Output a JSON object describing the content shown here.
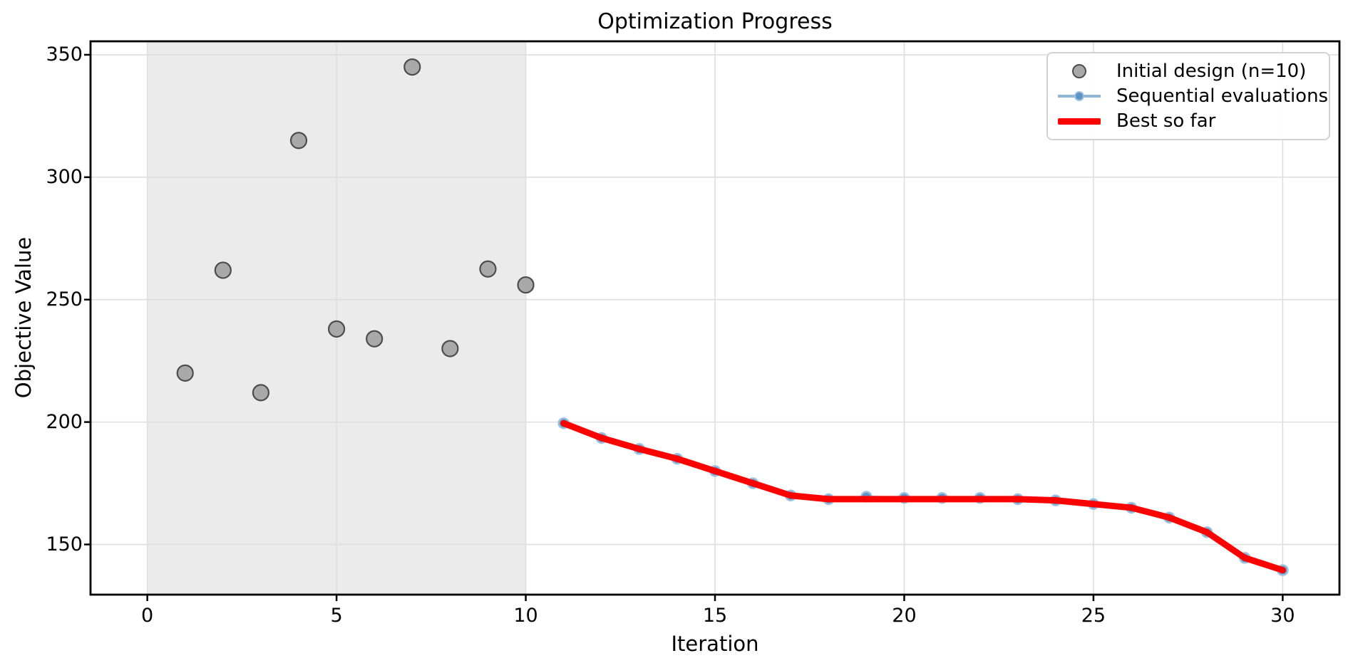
{
  "chart_data": {
    "type": "scatter+line",
    "title": "Optimization Progress",
    "xlabel": "Iteration",
    "ylabel": "Objective Value",
    "xlim": [
      -1.5,
      31.5
    ],
    "ylim": [
      129.5,
      355.5
    ],
    "x_ticks": [
      0,
      5,
      10,
      15,
      20,
      25,
      30
    ],
    "y_ticks": [
      150,
      200,
      250,
      300,
      350
    ],
    "grid": true,
    "legend_position": "upper right",
    "shaded_region": {
      "x0": 0,
      "x1": 10,
      "color": "#ebebeb"
    },
    "colors": {
      "background": "#ffffff",
      "grid": "#dedede",
      "spine": "#000000",
      "initial_fill": "#a9a9a9",
      "initial_edge": "#4d4d4d",
      "sequential_line": "#8fb6d6",
      "sequential_marker": "#5e93c3",
      "sequential_marker_edge": "#9dc0dd",
      "best_line": "#ff0000"
    },
    "series": [
      {
        "name": "Initial design (n=10)",
        "type": "scatter",
        "x": [
          1,
          2,
          3,
          4,
          5,
          6,
          7,
          8,
          9,
          10
        ],
        "y": [
          220,
          262,
          212,
          315,
          238,
          234,
          345,
          230,
          262.5,
          256
        ]
      },
      {
        "name": "Sequential evaluations",
        "type": "line+marker",
        "x": [
          11,
          12,
          13,
          14,
          15,
          16,
          17,
          18,
          19,
          20,
          21,
          22,
          23,
          24,
          25,
          26,
          27,
          28,
          29,
          30
        ],
        "y": [
          199.5,
          193.5,
          189,
          185,
          180,
          175,
          170,
          168.5,
          169.5,
          169,
          169,
          169,
          168.5,
          168,
          166.5,
          165,
          161,
          155,
          144.5,
          139.5
        ]
      },
      {
        "name": "Best so far",
        "type": "line",
        "x": [
          11,
          12,
          13,
          14,
          15,
          16,
          17,
          18,
          19,
          20,
          21,
          22,
          23,
          24,
          25,
          26,
          27,
          28,
          29,
          30
        ],
        "y": [
          199.5,
          193.5,
          189,
          185,
          180,
          175,
          170,
          168.5,
          168.5,
          168.5,
          168.5,
          168.5,
          168.5,
          168,
          166.5,
          165,
          161,
          155,
          144.5,
          139.5
        ]
      }
    ]
  }
}
